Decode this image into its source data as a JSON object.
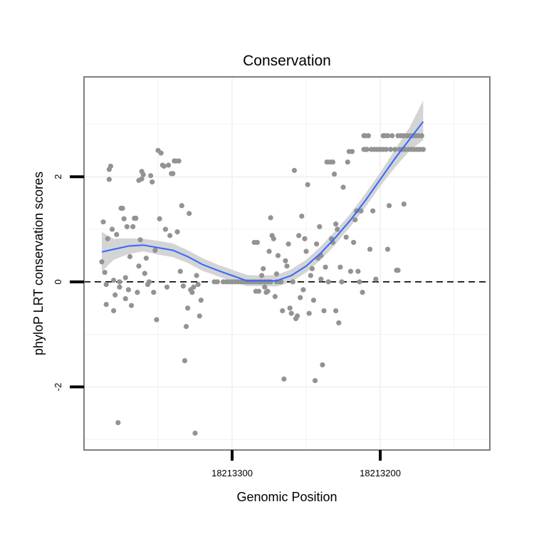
{
  "chart_data": {
    "type": "scatter",
    "title": "Conservation",
    "xlabel": "Genomic Position",
    "ylabel": "phyloP LRT conservation scores",
    "x_axis_reversed": true,
    "xlim": [
      18213400,
      18213126
    ],
    "ylim": [
      -3.2,
      3.9
    ],
    "x_ticks": [
      {
        "value": 18213300,
        "label": "18213300"
      },
      {
        "value": 18213200,
        "label": "18213200"
      }
    ],
    "y_ticks": [
      {
        "value": -2,
        "label": "-2"
      },
      {
        "value": 0,
        "label": "0"
      },
      {
        "value": 2,
        "label": "2"
      }
    ],
    "grid": true,
    "reference_line": {
      "y": 0,
      "style": "dashed"
    },
    "colors": {
      "points": "#939393",
      "smooth_line": "#3366FF",
      "confidence_band": "#CCCCCC",
      "panel_border": "#7F7F7F",
      "grid": "#F3F3F3"
    },
    "series": [
      {
        "kind": "points",
        "points": [
          [
            18213388,
            0.38
          ],
          [
            18213387,
            1.14
          ],
          [
            18213386,
            0.18
          ],
          [
            18213385,
            -0.05
          ],
          [
            18213385,
            -0.43
          ],
          [
            18213384,
            0.82
          ],
          [
            18213383,
            1.95
          ],
          [
            18213383,
            2.14
          ],
          [
            18213382,
            2.2
          ],
          [
            18213381,
            1.0
          ],
          [
            18213380,
            0.03
          ],
          [
            18213380,
            -0.55
          ],
          [
            18213379,
            -0.25
          ],
          [
            18213378,
            0.9
          ],
          [
            18213377,
            -2.68
          ],
          [
            18213376,
            0.0
          ],
          [
            18213376,
            -0.1
          ],
          [
            18213375,
            1.4
          ],
          [
            18213374,
            1.4
          ],
          [
            18213373,
            1.2
          ],
          [
            18213372,
            -0.32
          ],
          [
            18213372,
            0.08
          ],
          [
            18213371,
            1.05
          ],
          [
            18213370,
            -0.15
          ],
          [
            18213369,
            0.48
          ],
          [
            18213368,
            -0.45
          ],
          [
            18213367,
            1.05
          ],
          [
            18213366,
            1.21
          ],
          [
            18213365,
            1.21
          ],
          [
            18213364,
            -0.2
          ],
          [
            18213363,
            0.3
          ],
          [
            18213363,
            1.93
          ],
          [
            18213362,
            0.8
          ],
          [
            18213361,
            1.96
          ],
          [
            18213361,
            2.1
          ],
          [
            18213360,
            2.04
          ],
          [
            18213359,
            0.16
          ],
          [
            18213358,
            0.45
          ],
          [
            18213357,
            -0.05
          ],
          [
            18213356,
            0.0
          ],
          [
            18213355,
            2.02
          ],
          [
            18213354,
            1.9
          ],
          [
            18213353,
            -0.2
          ],
          [
            18213352,
            0.6
          ],
          [
            18213351,
            -0.72
          ],
          [
            18213350,
            2.5
          ],
          [
            18213349,
            1.2
          ],
          [
            18213348,
            2.45
          ],
          [
            18213347,
            2.22
          ],
          [
            18213346,
            2.2
          ],
          [
            18213345,
            1.0
          ],
          [
            18213344,
            -0.1
          ],
          [
            18213343,
            2.22
          ],
          [
            18213342,
            0.88
          ],
          [
            18213341,
            2.06
          ],
          [
            18213340,
            2.06
          ],
          [
            18213339,
            2.3
          ],
          [
            18213338,
            2.3
          ],
          [
            18213337,
            0.95
          ],
          [
            18213336,
            2.3
          ],
          [
            18213335,
            0.2
          ],
          [
            18213334,
            1.45
          ],
          [
            18213333,
            -0.08
          ],
          [
            18213332,
            -1.5
          ],
          [
            18213331,
            -0.85
          ],
          [
            18213330,
            -0.5
          ],
          [
            18213329,
            1.3
          ],
          [
            18213328,
            -0.15
          ],
          [
            18213327,
            -0.2
          ],
          [
            18213326,
            -0.1
          ],
          [
            18213325,
            -2.88
          ],
          [
            18213324,
            0.12
          ],
          [
            18213323,
            -0.05
          ],
          [
            18213322,
            -0.65
          ],
          [
            18213321,
            -0.35
          ],
          [
            18213312,
            0.0
          ],
          [
            18213310,
            0.0
          ],
          [
            18213306,
            0.0
          ],
          [
            18213304,
            0.0
          ],
          [
            18213302,
            0.0
          ],
          [
            18213300,
            0.0
          ],
          [
            18213298,
            0.0
          ],
          [
            18213296,
            0.0
          ],
          [
            18213294,
            0.0
          ],
          [
            18213292,
            0.0
          ],
          [
            18213290,
            0.0
          ],
          [
            18213288,
            0.0
          ],
          [
            18213286,
            0.0
          ],
          [
            18213284,
            0.0
          ],
          [
            18213282,
            0.0
          ],
          [
            18213280,
            0.0
          ],
          [
            18213278,
            0.0
          ],
          [
            18213276,
            0.0
          ],
          [
            18213274,
            0.0
          ],
          [
            18213285,
            0.75
          ],
          [
            18213283,
            0.75
          ],
          [
            18213284,
            -0.18
          ],
          [
            18213282,
            -0.18
          ],
          [
            18213281,
            0.0
          ],
          [
            18213280,
            0.12
          ],
          [
            18213279,
            0.25
          ],
          [
            18213278,
            -0.1
          ],
          [
            18213277,
            -0.2
          ],
          [
            18213276,
            -0.18
          ],
          [
            18213275,
            0.58
          ],
          [
            18213274,
            1.22
          ],
          [
            18213273,
            0.88
          ],
          [
            18213272,
            0.82
          ],
          [
            18213271,
            -0.28
          ],
          [
            18213270,
            0.0
          ],
          [
            18213270,
            0.15
          ],
          [
            18213269,
            0.5
          ],
          [
            18213268,
            0.0
          ],
          [
            18213267,
            0.0
          ],
          [
            18213266,
            -0.55
          ],
          [
            18213265,
            -1.85
          ],
          [
            18213264,
            0.4
          ],
          [
            18213263,
            0.3
          ],
          [
            18213262,
            0.72
          ],
          [
            18213261,
            -0.5
          ],
          [
            18213260,
            -0.6
          ],
          [
            18213259,
            0.0
          ],
          [
            18213258,
            2.12
          ],
          [
            18213257,
            -0.7
          ],
          [
            18213256,
            -0.65
          ],
          [
            18213255,
            0.88
          ],
          [
            18213254,
            -0.3
          ],
          [
            18213253,
            1.25
          ],
          [
            18213252,
            -0.15
          ],
          [
            18213251,
            0.82
          ],
          [
            18213250,
            0.58
          ],
          [
            18213249,
            1.85
          ],
          [
            18213248,
            -0.6
          ],
          [
            18213247,
            0.12
          ],
          [
            18213246,
            0.25
          ],
          [
            18213245,
            -0.35
          ],
          [
            18213244,
            -1.88
          ],
          [
            18213243,
            0.72
          ],
          [
            18213242,
            0.45
          ],
          [
            18213241,
            1.05
          ],
          [
            18213240,
            0.05
          ],
          [
            18213240,
            0.5
          ],
          [
            18213239,
            -1.58
          ],
          [
            18213238,
            -0.55
          ],
          [
            18213237,
            0.28
          ],
          [
            18213236,
            2.28
          ],
          [
            18213235,
            0.0
          ],
          [
            18213234,
            2.28
          ],
          [
            18213233,
            0.82
          ],
          [
            18213232,
            0.75
          ],
          [
            18213232,
            2.28
          ],
          [
            18213231,
            2.05
          ],
          [
            18213230,
            1.1
          ],
          [
            18213230,
            -0.55
          ],
          [
            18213229,
            1.0
          ],
          [
            18213228,
            -0.78
          ],
          [
            18213227,
            0.28
          ],
          [
            18213226,
            0.0
          ],
          [
            18213225,
            1.8
          ],
          [
            18213223,
            0.85
          ],
          [
            18213222,
            2.28
          ],
          [
            18213221,
            2.48
          ],
          [
            18213220,
            0.2
          ],
          [
            18213219,
            2.48
          ],
          [
            18213218,
            0.75
          ],
          [
            18213217,
            1.18
          ],
          [
            18213216,
            1.35
          ],
          [
            18213215,
            0.2
          ],
          [
            18213214,
            0.0
          ],
          [
            18213213,
            1.35
          ],
          [
            18213212,
            -0.2
          ],
          [
            18213211,
            2.52
          ],
          [
            18213211,
            2.78
          ],
          [
            18213210,
            2.52
          ],
          [
            18213210,
            2.78
          ],
          [
            18213209,
            2.52
          ],
          [
            18213208,
            2.78
          ],
          [
            18213207,
            0.62
          ],
          [
            18213206,
            2.52
          ],
          [
            18213205,
            1.35
          ],
          [
            18213204,
            2.52
          ],
          [
            18213203,
            0.05
          ],
          [
            18213202,
            2.52
          ],
          [
            18213200,
            2.52
          ],
          [
            18213198,
            2.52
          ],
          [
            18213198,
            2.78
          ],
          [
            18213197,
            2.78
          ],
          [
            18213196,
            2.52
          ],
          [
            18213195,
            0.62
          ],
          [
            18213195,
            2.78
          ],
          [
            18213194,
            1.45
          ],
          [
            18213193,
            2.52
          ],
          [
            18213192,
            2.78
          ],
          [
            18213190,
            2.52
          ],
          [
            18213189,
            0.22
          ],
          [
            18213188,
            0.22
          ],
          [
            18213188,
            2.78
          ],
          [
            18213187,
            2.52
          ],
          [
            18213186,
            2.78
          ],
          [
            18213185,
            2.52
          ],
          [
            18213184,
            1.48
          ],
          [
            18213184,
            2.78
          ],
          [
            18213183,
            2.52
          ],
          [
            18213182,
            2.78
          ],
          [
            18213181,
            2.52
          ],
          [
            18213180,
            2.78
          ],
          [
            18213179,
            2.52
          ],
          [
            18213178,
            2.78
          ],
          [
            18213177,
            2.52
          ],
          [
            18213176,
            2.78
          ],
          [
            18213175,
            2.52
          ],
          [
            18213174,
            2.78
          ],
          [
            18213173,
            2.52
          ],
          [
            18213172,
            2.78
          ],
          [
            18213171,
            2.52
          ]
        ]
      },
      {
        "kind": "smooth",
        "line": [
          [
            18213388,
            0.57
          ],
          [
            18213380,
            0.62
          ],
          [
            18213370,
            0.68
          ],
          [
            18213360,
            0.7
          ],
          [
            18213350,
            0.65
          ],
          [
            18213340,
            0.6
          ],
          [
            18213330,
            0.48
          ],
          [
            18213320,
            0.33
          ],
          [
            18213310,
            0.22
          ],
          [
            18213300,
            0.12
          ],
          [
            18213290,
            0.02
          ],
          [
            18213280,
            0.02
          ],
          [
            18213270,
            0.02
          ],
          [
            18213260,
            0.12
          ],
          [
            18213250,
            0.3
          ],
          [
            18213240,
            0.55
          ],
          [
            18213230,
            0.85
          ],
          [
            18213220,
            1.18
          ],
          [
            18213210,
            1.55
          ],
          [
            18213200,
            1.95
          ],
          [
            18213190,
            2.35
          ],
          [
            18213180,
            2.72
          ],
          [
            18213171,
            3.05
          ]
        ],
        "band_upper": [
          [
            18213388,
            0.95
          ],
          [
            18213380,
            0.82
          ],
          [
            18213370,
            0.83
          ],
          [
            18213360,
            0.82
          ],
          [
            18213350,
            0.78
          ],
          [
            18213340,
            0.73
          ],
          [
            18213330,
            0.6
          ],
          [
            18213320,
            0.45
          ],
          [
            18213310,
            0.33
          ],
          [
            18213300,
            0.23
          ],
          [
            18213290,
            0.13
          ],
          [
            18213280,
            0.12
          ],
          [
            18213270,
            0.13
          ],
          [
            18213260,
            0.24
          ],
          [
            18213250,
            0.42
          ],
          [
            18213240,
            0.68
          ],
          [
            18213230,
            0.98
          ],
          [
            18213220,
            1.3
          ],
          [
            18213210,
            1.68
          ],
          [
            18213200,
            2.08
          ],
          [
            18213190,
            2.52
          ],
          [
            18213180,
            2.95
          ],
          [
            18213171,
            3.45
          ]
        ],
        "band_lower": [
          [
            18213388,
            0.2
          ],
          [
            18213380,
            0.42
          ],
          [
            18213370,
            0.53
          ],
          [
            18213360,
            0.58
          ],
          [
            18213350,
            0.52
          ],
          [
            18213340,
            0.47
          ],
          [
            18213330,
            0.36
          ],
          [
            18213320,
            0.21
          ],
          [
            18213310,
            0.11
          ],
          [
            18213300,
            0.01
          ],
          [
            18213290,
            -0.08
          ],
          [
            18213280,
            -0.08
          ],
          [
            18213270,
            -0.09
          ],
          [
            18213260,
            0.0
          ],
          [
            18213250,
            0.18
          ],
          [
            18213240,
            0.42
          ],
          [
            18213230,
            0.72
          ],
          [
            18213220,
            1.06
          ],
          [
            18213210,
            1.42
          ],
          [
            18213200,
            1.82
          ],
          [
            18213190,
            2.18
          ],
          [
            18213180,
            2.5
          ],
          [
            18213171,
            2.7
          ]
        ]
      }
    ]
  }
}
